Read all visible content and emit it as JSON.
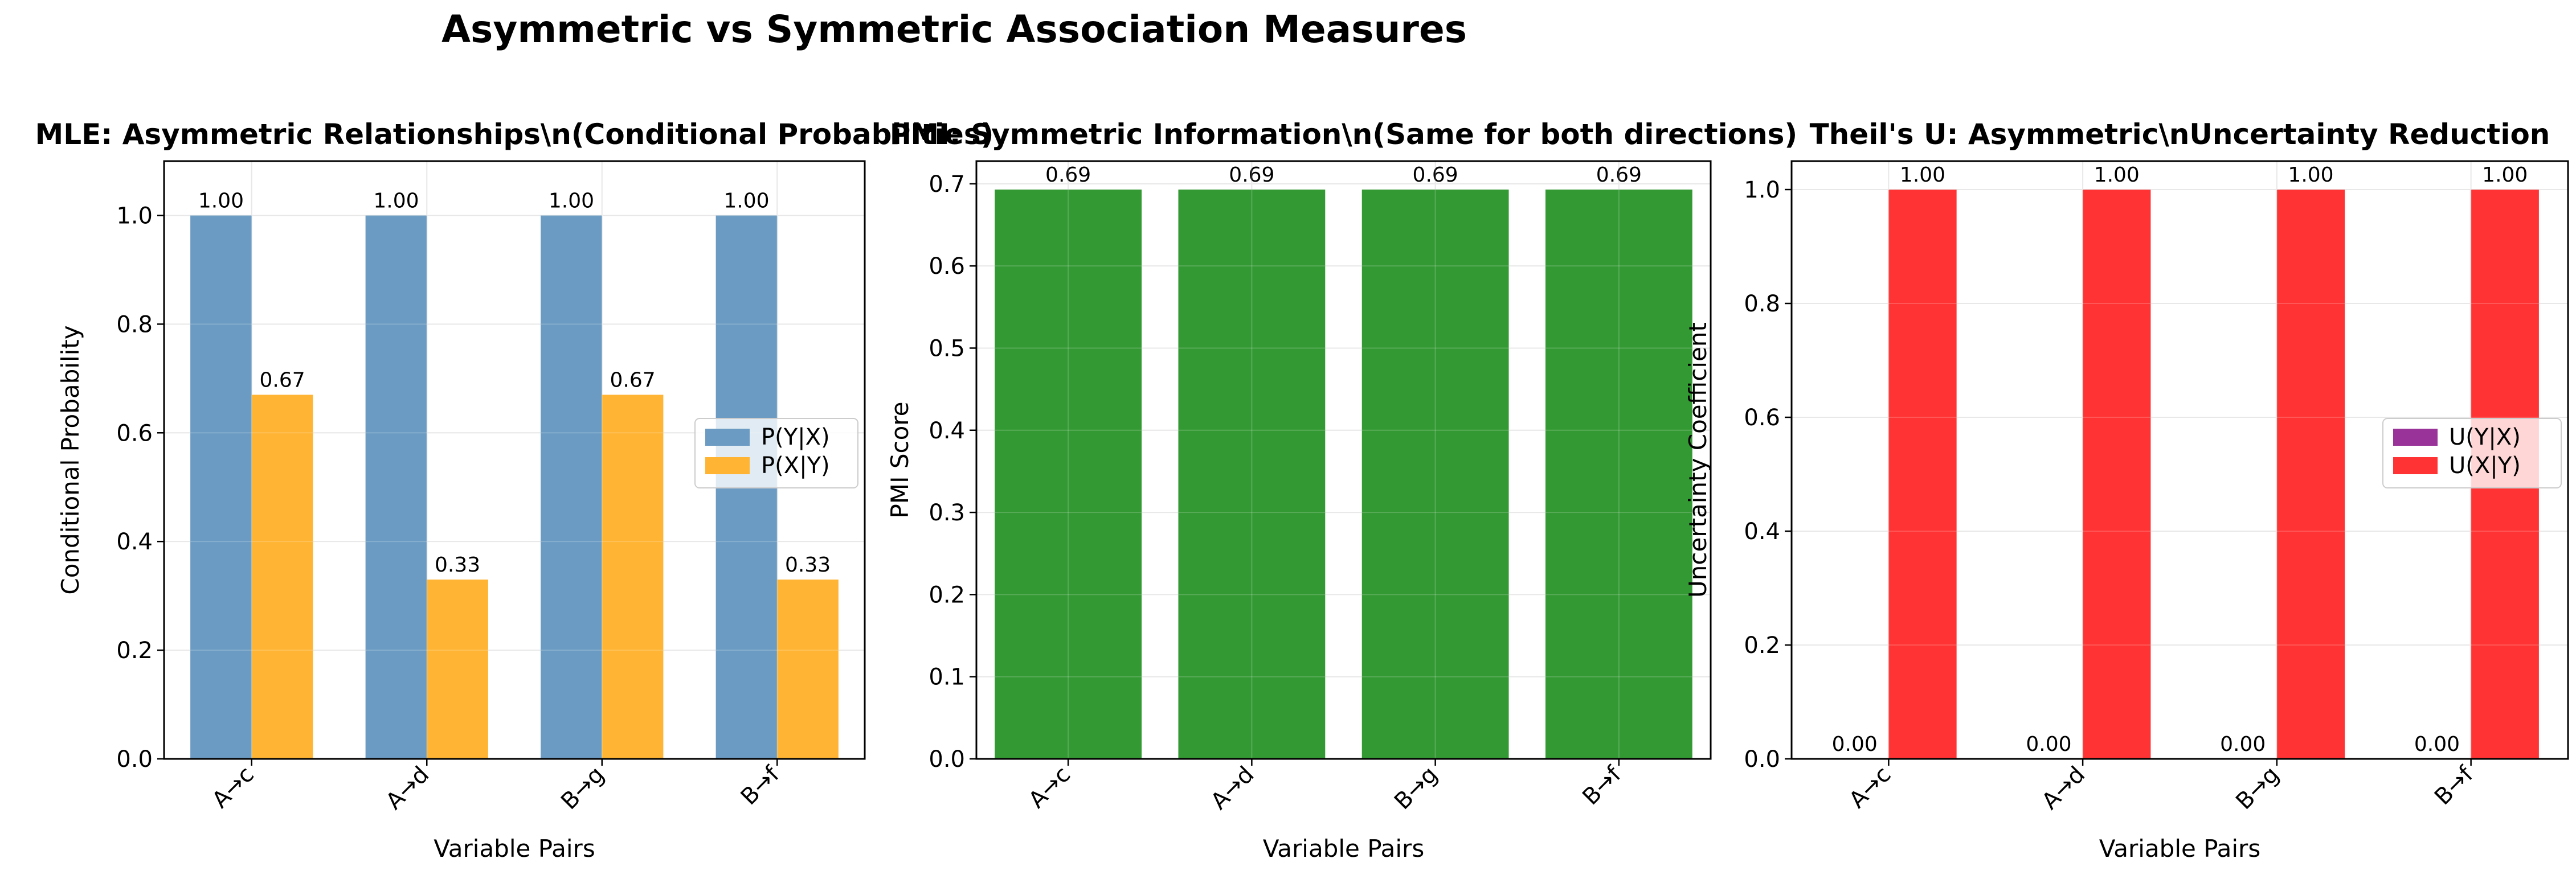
{
  "figure": {
    "suptitle": "Asymmetric vs Symmetric Association Measures"
  },
  "chart_data": [
    {
      "type": "bar",
      "title": "MLE: Asymmetric Relationships\\n(Conditional Probabilities)",
      "xlabel": "Variable Pairs",
      "ylabel": "Conditional Probability",
      "categories": [
        "A→c",
        "A→d",
        "B→g",
        "B→f"
      ],
      "ylim": [
        0,
        1.1
      ],
      "yticks": [
        "0.0",
        "0.2",
        "0.4",
        "0.6",
        "0.8",
        "1.0"
      ],
      "grid": true,
      "legend_position": "center-right",
      "series": [
        {
          "name": "P(Y|X)",
          "values": [
            1.0,
            1.0,
            1.0,
            1.0
          ],
          "labels": [
            "1.00",
            "1.00",
            "1.00",
            "1.00"
          ],
          "color": "#6b9bc3"
        },
        {
          "name": "P(X|Y)",
          "values": [
            0.67,
            0.33,
            0.67,
            0.33
          ],
          "labels": [
            "0.67",
            "0.33",
            "0.67",
            "0.33"
          ],
          "color": "#ffb533"
        }
      ]
    },
    {
      "type": "bar",
      "title": "PMI: Symmetric Information\\n(Same for both directions)",
      "xlabel": "Variable Pairs",
      "ylabel": "PMI Score",
      "categories": [
        "A→c",
        "A→d",
        "B→g",
        "B→f"
      ],
      "ylim": [
        0,
        0.7276
      ],
      "yticks": [
        "0.0",
        "0.1",
        "0.2",
        "0.3",
        "0.4",
        "0.5",
        "0.6",
        "0.7"
      ],
      "grid": true,
      "series": [
        {
          "values": [
            0.693,
            0.693,
            0.693,
            0.693
          ],
          "labels": [
            "0.69",
            "0.69",
            "0.69",
            "0.69"
          ],
          "color": "#339933"
        }
      ]
    },
    {
      "type": "bar",
      "title": "Theil's U: Asymmetric\\nUncertainty Reduction",
      "xlabel": "Variable Pairs",
      "ylabel": "Uncertainty Coefficient",
      "categories": [
        "A→c",
        "A→d",
        "B→g",
        "B→f"
      ],
      "ylim": [
        0,
        1.05
      ],
      "yticks": [
        "0.0",
        "0.2",
        "0.4",
        "0.6",
        "0.8",
        "1.0"
      ],
      "grid": true,
      "legend_position": "center-right",
      "series": [
        {
          "name": "U(Y|X)",
          "values": [
            0.0,
            0.0,
            0.0,
            0.0
          ],
          "labels": [
            "0.00",
            "0.00",
            "0.00",
            "0.00"
          ],
          "color": "#993399"
        },
        {
          "name": "U(X|Y)",
          "values": [
            1.0,
            1.0,
            1.0,
            1.0
          ],
          "labels": [
            "1.00",
            "1.00",
            "1.00",
            "1.00"
          ],
          "color": "#ff3333"
        }
      ]
    }
  ]
}
